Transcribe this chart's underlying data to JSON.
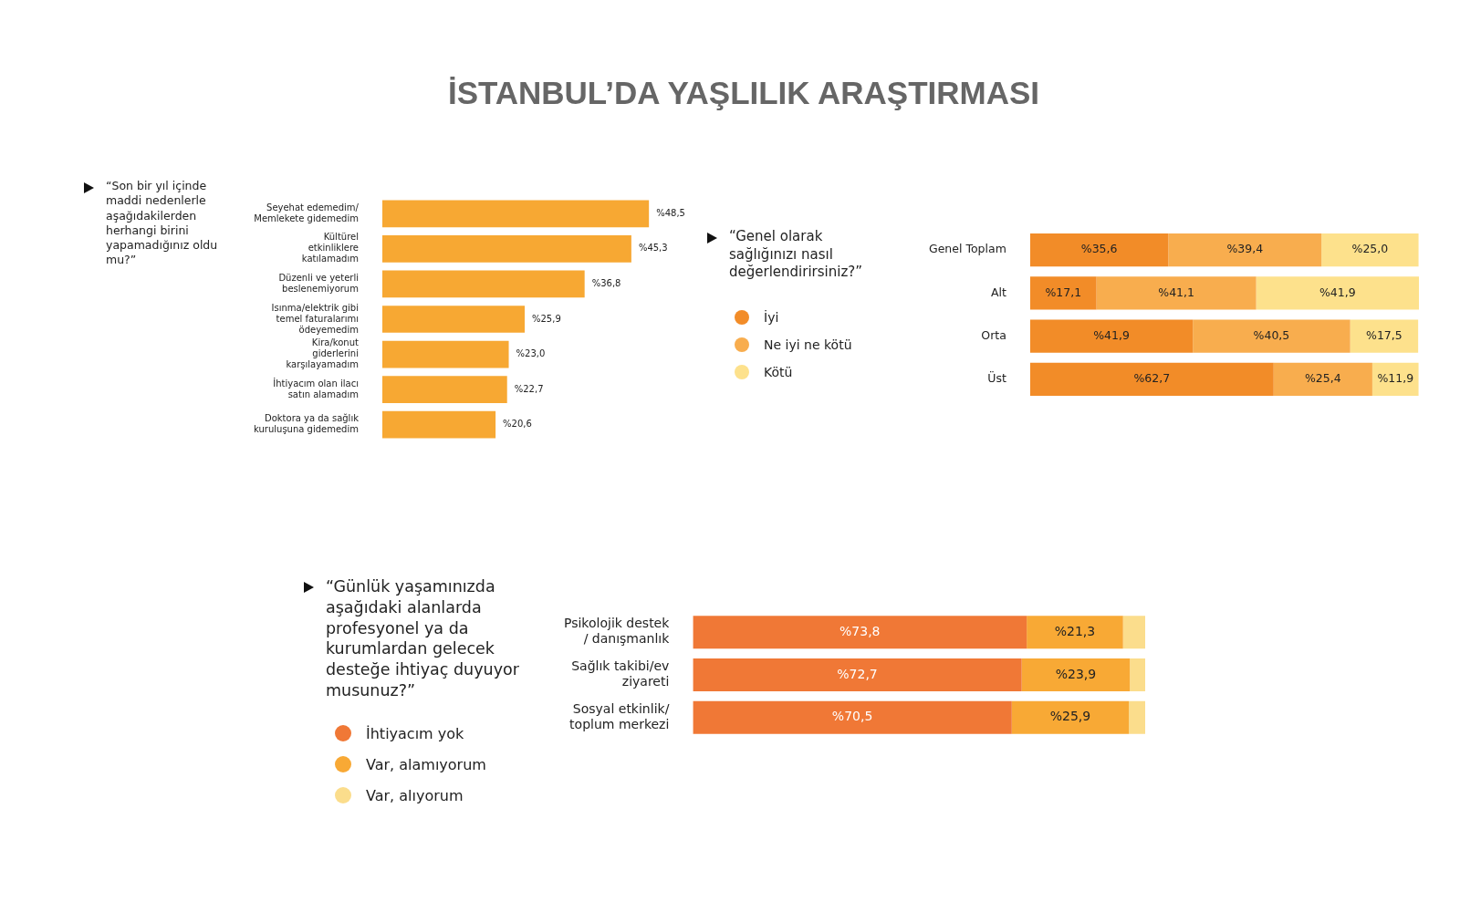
{
  "chart_data": [
    {
      "type": "bar",
      "orientation": "horizontal",
      "title": "İSTANBUL’DA YAŞLILIK ARAŞTIRMASI",
      "subtitle": "“Son bir yıl içinde maddi nedenlerle aşağıdakilerden herhangi birini yapamadığınız oldu mu?”",
      "categories": [
        "Seyehat edemedim/ Memlekete gidemedim",
        "Kültürel etkinliklere katılamadım",
        "Düzenli ve yeterli beslenemiyorum",
        "Isınma/elektrik gibi temel faturalarımı ödeyemedim",
        "Kira/konut giderlerini karşılayamadım",
        "İhtiyacım olan ilacı satın alamadım",
        "Doktora ya da sağlık kuruluşuna gidemedim"
      ],
      "values": [
        48.5,
        45.3,
        36.8,
        25.9,
        23.0,
        22.7,
        20.6
      ],
      "value_labels": [
        "%48,5",
        "%45,3",
        "%36,8",
        "%25,9",
        "%23,0",
        "%22,7",
        "%20,6"
      ],
      "color": "#f7a833"
    },
    {
      "type": "bar",
      "orientation": "horizontal",
      "stacked": true,
      "legend": "left",
      "subtitle": "“Genel olarak sağlığınızı nasıl değerlendirirsiniz?”",
      "categories": [
        "Genel Toplam",
        "Alt",
        "Orta",
        "Üst"
      ],
      "series": [
        {
          "name": "İyi",
          "color": "#f28c28",
          "values": [
            35.6,
            17.1,
            41.9,
            62.7
          ],
          "value_labels": [
            "%35,6",
            "%17,1",
            "%41,9",
            "%62,7"
          ]
        },
        {
          "name": "Ne iyi ne kötü",
          "color": "#f8ad4e",
          "values": [
            39.4,
            41.1,
            40.5,
            25.4
          ],
          "value_labels": [
            "%39,4",
            "%41,1",
            "%40,5",
            "%25,4"
          ]
        },
        {
          "name": "Kötü",
          "color": "#fde18c",
          "values": [
            25.0,
            41.9,
            17.5,
            11.9
          ],
          "value_labels": [
            "%25,0",
            "%41,9",
            "%17,5",
            "%11,9"
          ]
        }
      ]
    },
    {
      "type": "bar",
      "orientation": "horizontal",
      "stacked": true,
      "legend": "left",
      "subtitle": "“Günlük yaşamınızda aşağıdaki alanlarda profesyonel ya da kurumlardan gelecek desteğe ihtiyaç duyuyor musunuz?”",
      "categories": [
        "Psikolojik destek / danışmanlık",
        "Sağlık takibi/ev ziyareti",
        "Sosyal etkinlik/ toplum merkezi"
      ],
      "series": [
        {
          "name": "İhtiyacım yok",
          "color": "#f07836",
          "values": [
            73.8,
            72.7,
            70.5
          ],
          "value_labels": [
            "%73,8",
            "%72,7",
            "%70,5"
          ]
        },
        {
          "name": "Var, alamıyorum",
          "color": "#f8a935",
          "values": [
            21.3,
            23.9,
            25.9
          ],
          "value_labels": [
            "%21,3",
            "%23,9",
            "%25,9"
          ]
        },
        {
          "name": "Var, alıyorum",
          "color": "#fbdd8c",
          "values": [
            4.9,
            3.4,
            3.6
          ]
        }
      ]
    }
  ]
}
